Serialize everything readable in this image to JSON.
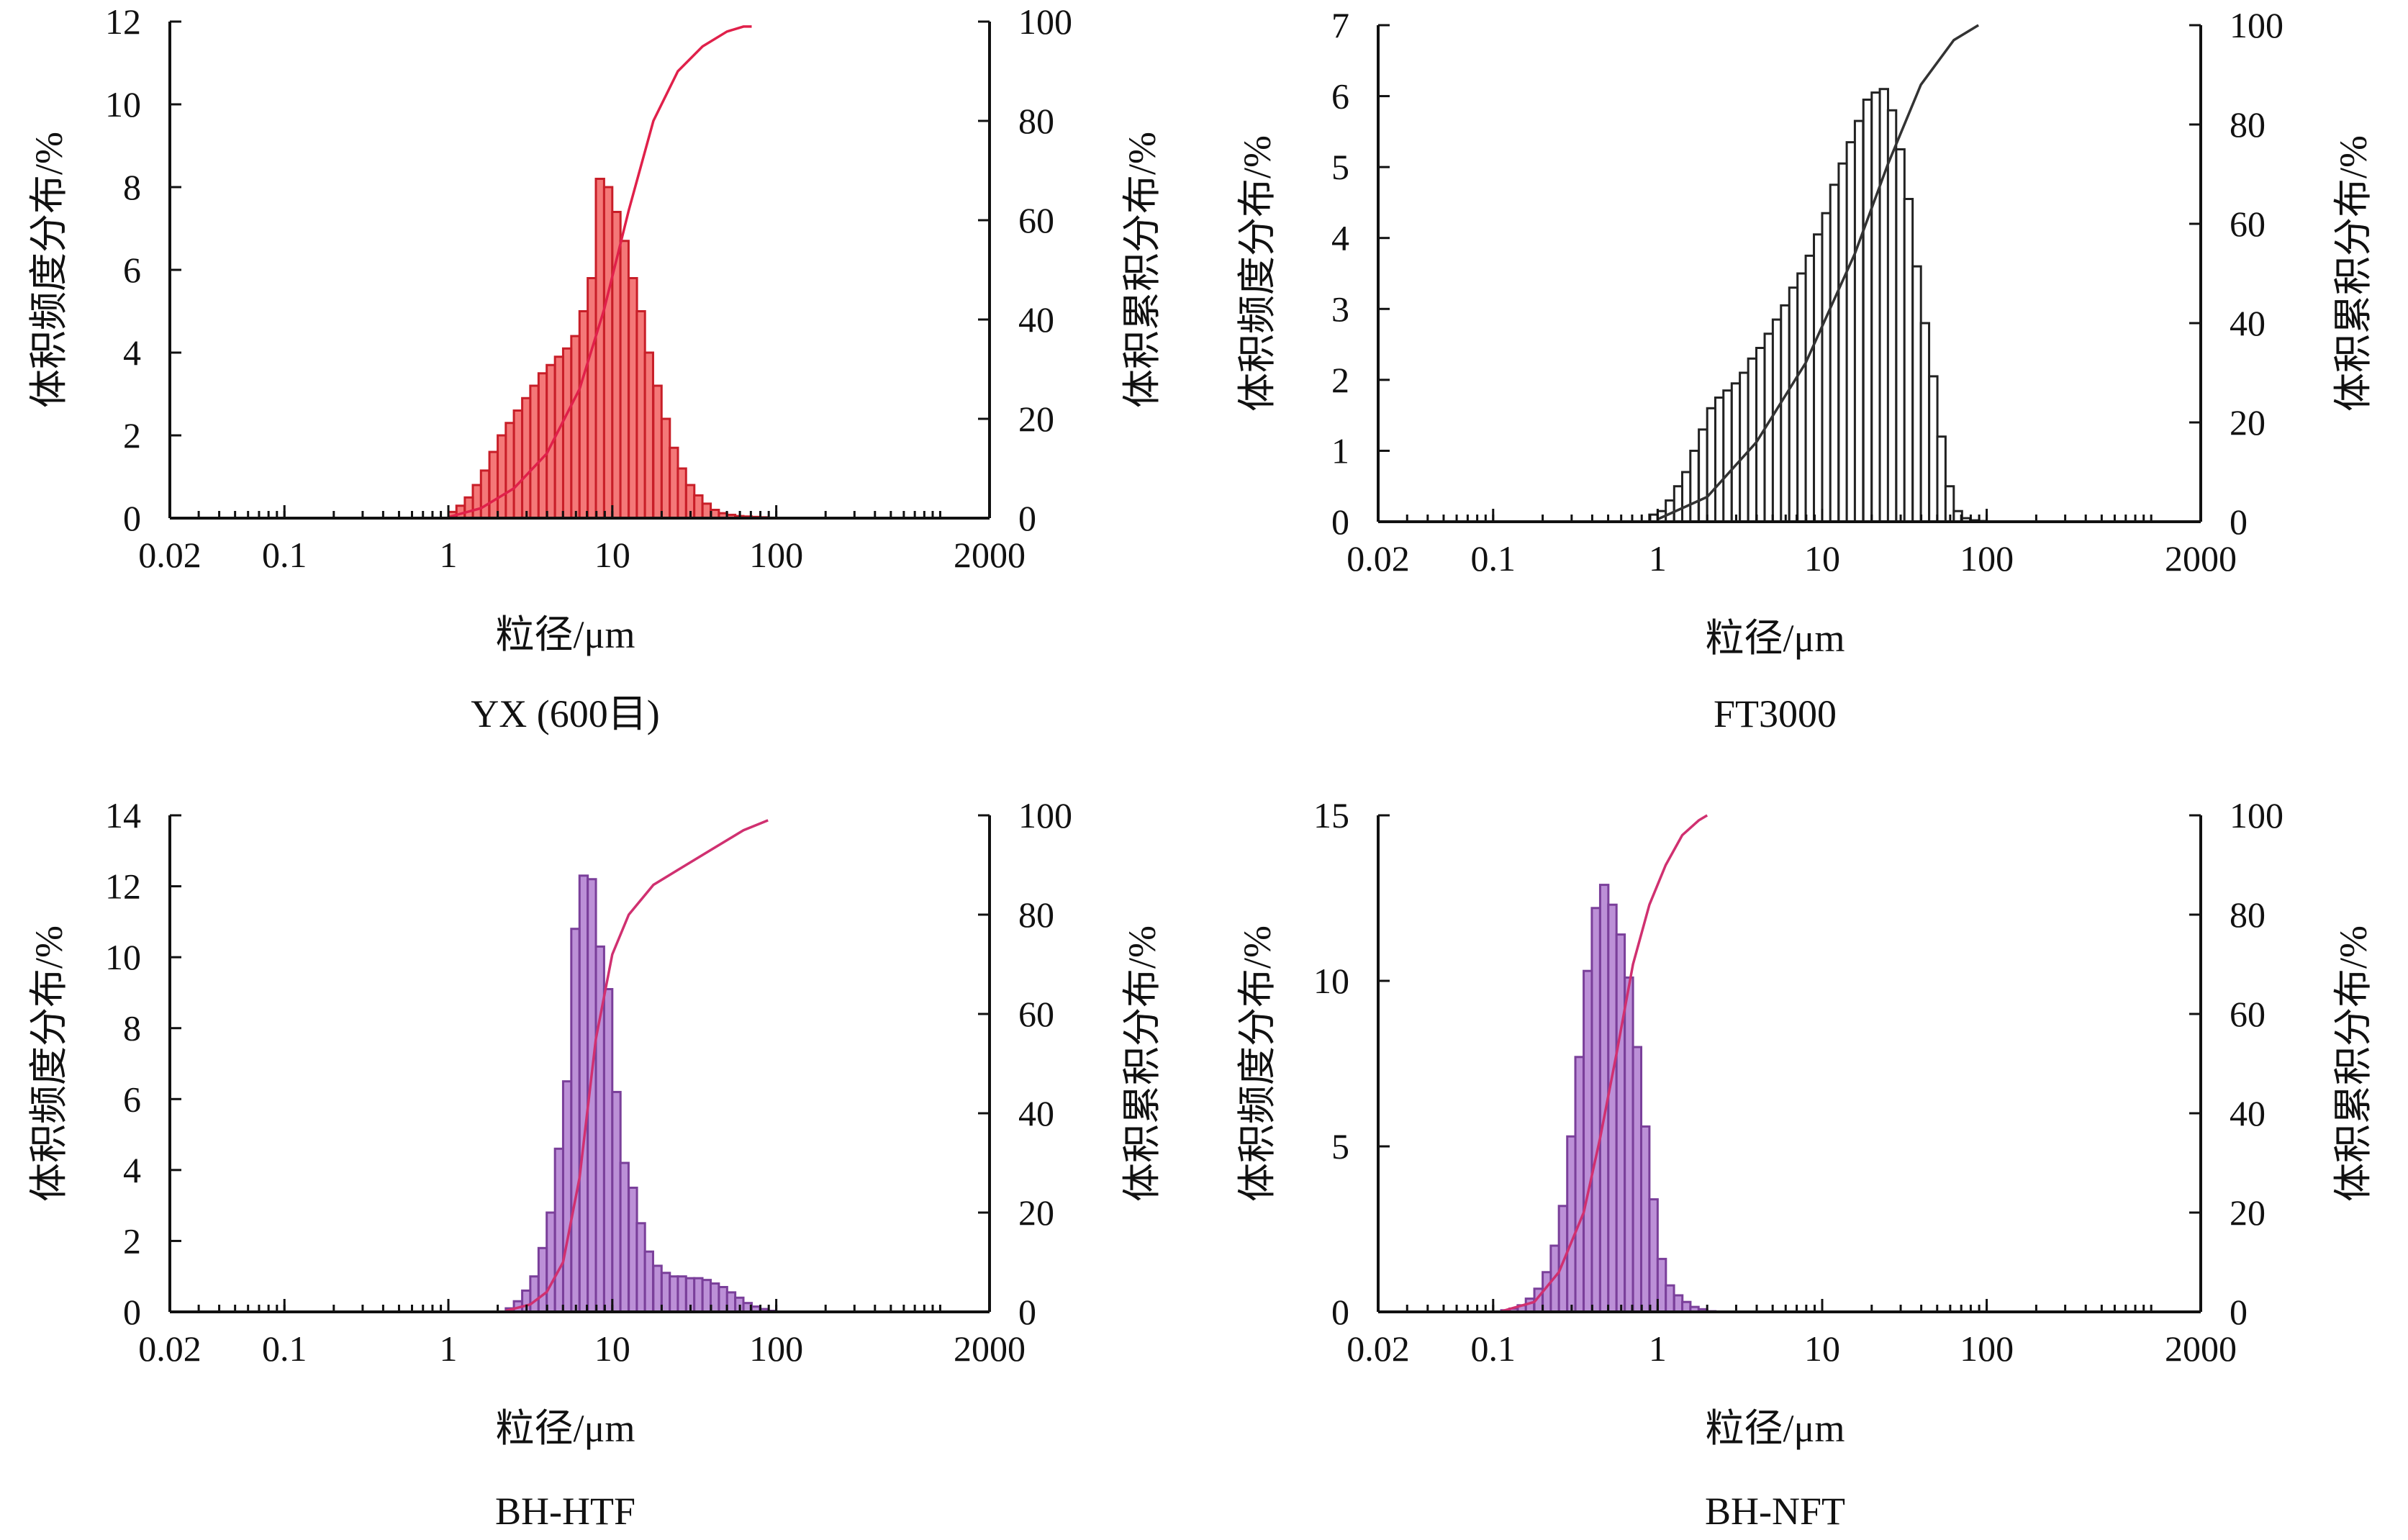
{
  "chart_data": [
    {
      "type": "bar",
      "title": "YX (600目)",
      "xlabel": "粒径/μm",
      "ylabel": "体积频度分布/%",
      "ylabel_right": "体积累积分布/%",
      "x_scale": "log",
      "xlim": [
        0.02,
        2000
      ],
      "x_ticks": [
        "0.02",
        "0.1",
        "1",
        "10",
        "100",
        "2000"
      ],
      "ylim": [
        0,
        12
      ],
      "y_ticks": [
        "0",
        "2",
        "4",
        "6",
        "8",
        "10",
        "12"
      ],
      "ylim_right": [
        0,
        100
      ],
      "y_ticks_right": [
        "0",
        "20",
        "40",
        "60",
        "80",
        "100"
      ],
      "colors": {
        "bar_fill": "#f26060",
        "bar_edge": "#c81e28",
        "curve": "#e0204a"
      },
      "series": [
        {
          "type": "bar",
          "x": [
            1.0,
            1.12,
            1.26,
            1.41,
            1.58,
            1.78,
            2.0,
            2.24,
            2.51,
            2.82,
            3.16,
            3.55,
            3.98,
            4.47,
            5.01,
            5.62,
            6.31,
            7.08,
            7.94,
            8.91,
            10.0,
            11.2,
            12.6,
            14.1,
            15.8,
            17.8,
            20.0,
            22.4,
            25.1,
            28.2,
            31.6,
            35.5,
            39.8,
            44.7,
            50.1,
            56.2,
            63.1,
            70.8,
            79.4,
            89.1
          ],
          "values": [
            0.15,
            0.3,
            0.5,
            0.8,
            1.15,
            1.6,
            2.0,
            2.3,
            2.6,
            2.9,
            3.2,
            3.5,
            3.7,
            3.9,
            4.1,
            4.4,
            5.0,
            5.8,
            8.2,
            8.0,
            7.4,
            6.7,
            5.8,
            5.0,
            4.0,
            3.2,
            2.4,
            1.7,
            1.2,
            0.8,
            0.55,
            0.35,
            0.2,
            0.12,
            0.08,
            0.05,
            0.04,
            0.03,
            0.02,
            0.01
          ]
        },
        {
          "type": "line",
          "axis": "right",
          "x": [
            1.0,
            1.58,
            2.51,
            3.98,
            6.31,
            8.91,
            12.6,
            17.8,
            25.1,
            35.5,
            50.1,
            63.1,
            70.8
          ],
          "values": [
            0.2,
            2,
            6,
            13,
            26,
            42,
            62,
            80,
            90,
            95,
            98,
            99,
            99
          ]
        }
      ]
    },
    {
      "type": "bar",
      "title": "FT3000",
      "xlabel": "粒径/μm",
      "ylabel": "体积频度分布/%",
      "ylabel_right": "体积累积分布/%",
      "x_scale": "log",
      "xlim": [
        0.02,
        2000
      ],
      "x_ticks": [
        "0.02",
        "0.1",
        "1",
        "10",
        "100",
        "2000"
      ],
      "ylim": [
        0,
        7
      ],
      "y_ticks": [
        "0",
        "1",
        "2",
        "3",
        "4",
        "5",
        "6",
        "7"
      ],
      "ylim_right": [
        0,
        100
      ],
      "y_ticks_right": [
        "0",
        "20",
        "40",
        "60",
        "80",
        "100"
      ],
      "colors": {
        "bar_fill": "#ffffff",
        "bar_edge": "#222222",
        "curve": "#333333"
      },
      "series": [
        {
          "type": "bar",
          "x": [
            0.89,
            1.0,
            1.12,
            1.26,
            1.41,
            1.58,
            1.78,
            2.0,
            2.24,
            2.51,
            2.82,
            3.16,
            3.55,
            3.98,
            4.47,
            5.01,
            5.62,
            6.31,
            7.08,
            7.94,
            8.91,
            10.0,
            11.2,
            12.6,
            14.1,
            15.8,
            17.8,
            20.0,
            22.4,
            25.1,
            28.2,
            31.6,
            35.5,
            39.8,
            44.7,
            50.1,
            56.2,
            63.1,
            70.8,
            79.4,
            89.1
          ],
          "values": [
            0.1,
            0.15,
            0.3,
            0.5,
            0.7,
            1.0,
            1.3,
            1.6,
            1.75,
            1.85,
            1.95,
            2.1,
            2.3,
            2.45,
            2.65,
            2.85,
            3.05,
            3.3,
            3.5,
            3.75,
            4.05,
            4.35,
            4.75,
            5.05,
            5.35,
            5.65,
            5.95,
            6.05,
            6.1,
            5.8,
            5.25,
            4.55,
            3.6,
            2.8,
            2.05,
            1.2,
            0.5,
            0.15,
            0.05,
            0.02,
            0.01
          ]
        },
        {
          "type": "line",
          "axis": "right",
          "x": [
            1.0,
            2.0,
            3.98,
            7.94,
            15.8,
            25.1,
            39.8,
            63.1,
            89.1
          ],
          "values": [
            0.5,
            5,
            16,
            32,
            54,
            72,
            88,
            97,
            100
          ]
        }
      ]
    },
    {
      "type": "bar",
      "title": "BH-HTF",
      "xlabel": "粒径/μm",
      "ylabel": "体积频度分布/%",
      "ylabel_right": "体积累积分布/%",
      "x_scale": "log",
      "xlim": [
        0.02,
        2000
      ],
      "x_ticks": [
        "0.02",
        "0.1",
        "1",
        "10",
        "100",
        "2000"
      ],
      "ylim": [
        0,
        14
      ],
      "y_ticks": [
        "0",
        "2",
        "4",
        "6",
        "8",
        "10",
        "12",
        "14"
      ],
      "ylim_right": [
        0,
        100
      ],
      "y_ticks_right": [
        "0",
        "20",
        "40",
        "60",
        "80",
        "100"
      ],
      "colors": {
        "bar_fill": "#b07cd0",
        "bar_edge": "#7a3f9a",
        "curve": "#d03070"
      },
      "series": [
        {
          "type": "bar",
          "x": [
            2.24,
            2.51,
            2.82,
            3.16,
            3.55,
            3.98,
            4.47,
            5.01,
            5.62,
            6.31,
            7.08,
            7.94,
            8.91,
            10.0,
            11.2,
            12.6,
            14.1,
            15.8,
            17.8,
            20.0,
            22.4,
            25.1,
            28.2,
            31.6,
            35.5,
            39.8,
            44.7,
            50.1,
            56.2,
            63.1,
            70.8,
            79.4,
            89.1
          ],
          "values": [
            0.1,
            0.3,
            0.6,
            1.0,
            1.8,
            2.8,
            4.6,
            6.5,
            10.8,
            12.3,
            12.2,
            10.3,
            9.1,
            6.2,
            4.2,
            3.5,
            2.5,
            1.7,
            1.3,
            1.1,
            1.0,
            1.0,
            0.95,
            0.95,
            0.9,
            0.8,
            0.7,
            0.55,
            0.4,
            0.25,
            0.15,
            0.08,
            0.03
          ]
        },
        {
          "type": "line",
          "axis": "right",
          "x": [
            2.24,
            3.16,
            3.98,
            5.01,
            6.31,
            7.94,
            10.0,
            12.6,
            17.8,
            25.1,
            39.8,
            63.1,
            89.1
          ],
          "values": [
            0.2,
            1.5,
            4,
            10,
            27,
            55,
            72,
            80,
            86,
            89,
            93,
            97,
            99
          ]
        }
      ]
    },
    {
      "type": "bar",
      "title": "BH-NFT",
      "xlabel": "粒径/μm",
      "ylabel": "体积频度分布/%",
      "ylabel_right": "体积累积分布/%",
      "x_scale": "log",
      "xlim": [
        0.02,
        2000
      ],
      "x_ticks": [
        "0.02",
        "0.1",
        "1",
        "10",
        "100",
        "2000"
      ],
      "ylim": [
        0,
        15
      ],
      "y_ticks": [
        "0",
        "5",
        "10",
        "15"
      ],
      "ylim_right": [
        0,
        100
      ],
      "y_ticks_right": [
        "0",
        "20",
        "40",
        "60",
        "80",
        "100"
      ],
      "colors": {
        "bar_fill": "#b07cd0",
        "bar_edge": "#7a3f9a",
        "curve": "#d03070"
      },
      "series": [
        {
          "type": "bar",
          "x": [
            0.112,
            0.126,
            0.141,
            0.158,
            0.178,
            0.2,
            0.224,
            0.251,
            0.282,
            0.316,
            0.355,
            0.398,
            0.447,
            0.501,
            0.562,
            0.631,
            0.708,
            0.794,
            0.891,
            1.0,
            1.12,
            1.26,
            1.41,
            1.58,
            1.78,
            2.0
          ],
          "values": [
            0.05,
            0.1,
            0.2,
            0.4,
            0.7,
            1.2,
            2.0,
            3.2,
            5.3,
            7.7,
            10.3,
            12.2,
            12.9,
            12.3,
            11.4,
            10.1,
            8.0,
            5.6,
            3.4,
            1.6,
            0.8,
            0.5,
            0.3,
            0.15,
            0.08,
            0.02
          ]
        },
        {
          "type": "line",
          "axis": "right",
          "x": [
            0.112,
            0.178,
            0.251,
            0.355,
            0.447,
            0.562,
            0.708,
            0.891,
            1.12,
            1.41,
            1.78,
            2.0
          ],
          "values": [
            0.1,
            2,
            8,
            20,
            35,
            52,
            70,
            82,
            90,
            96,
            99,
            100
          ]
        }
      ]
    }
  ]
}
